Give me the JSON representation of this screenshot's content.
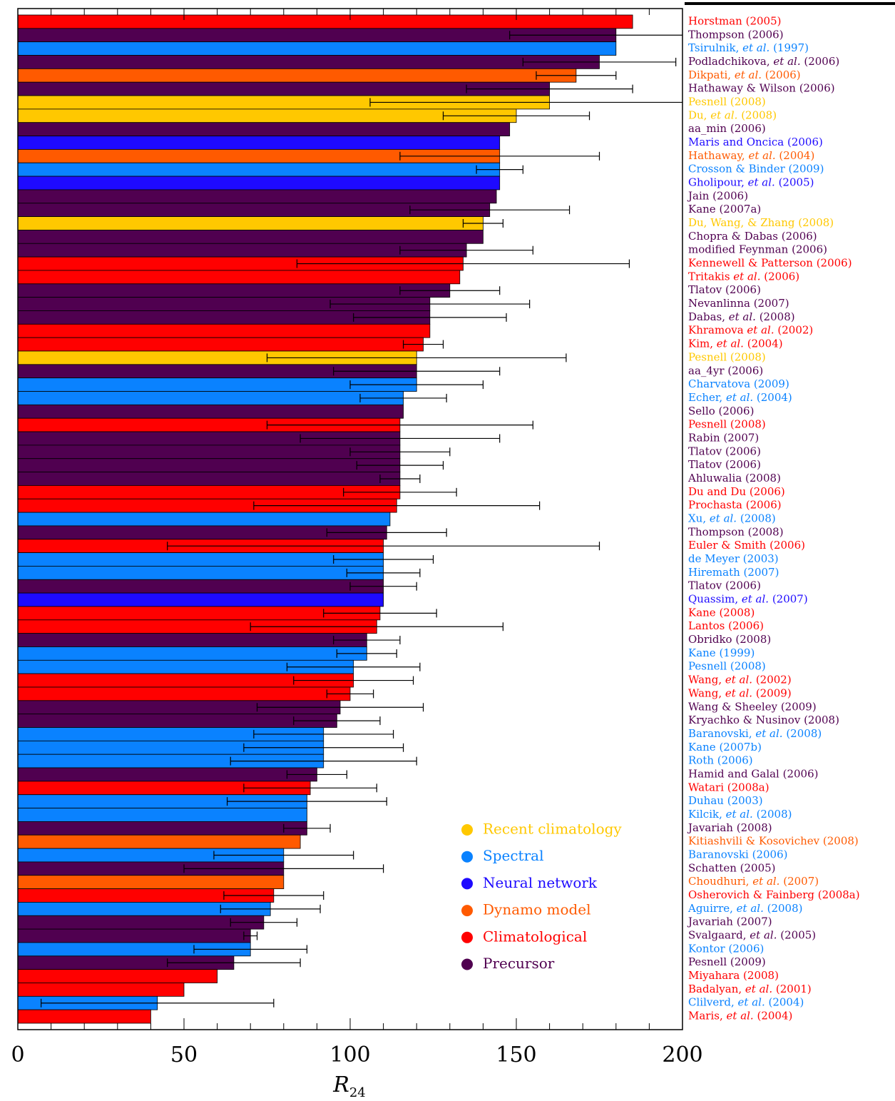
{
  "chart_data": {
    "type": "barh",
    "xlim": [
      0,
      200
    ],
    "xticks": [
      0,
      50,
      100,
      150,
      200
    ],
    "xminorticks": [
      10,
      20,
      30,
      40,
      60,
      70,
      80,
      90,
      110,
      120,
      130,
      140,
      160,
      170,
      180,
      190
    ],
    "xlabel": "R",
    "xlabel_subscript": "24",
    "categories": [
      "Horstman (2005)",
      "Thompson (2006)",
      "Tsirulnik, et al. (1997)",
      "Podladchikova, et al. (2006)",
      "Dikpati, et al. (2006)",
      "Hathaway & Wilson (2006)",
      "Pesnell (2008)",
      "Du, et al. (2008)",
      "aa_min (2006)",
      "Maris and Oncica (2006)",
      "Hathaway, et al. (2004)",
      "Crosson & Binder (2009)",
      "Gholipour, et al. (2005)",
      "Jain (2006)",
      "Kane (2007a)",
      "Du, Wang, & Zhang (2008)",
      "Chopra & Dabas (2006)",
      "modified Feynman (2006)",
      "Kennewell & Patterson (2006)",
      "Tritakis et al. (2006)",
      "Tlatov (2006)",
      "Nevanlinna (2007)",
      "Dabas, et al. (2008)",
      "Khramova et al. (2002)",
      "Kim, et al. (2004)",
      "Pesnell (2008)",
      "aa_4yr (2006)",
      "Charvatova (2009)",
      "Echer, et al. (2004)",
      "Sello (2006)",
      "Pesnell (2008)",
      "Rabin (2007)",
      "Tlatov (2006)",
      "Tlatov (2006)",
      "Ahluwalia (2008)",
      "Du and Du (2006)",
      "Prochasta (2006)",
      "Xu, et al. (2008)",
      "Thompson (2008)",
      "Euler & Smith (2006)",
      "de Meyer (2003)",
      "Hiremath (2007)",
      "Tlatov (2006)",
      "Quassim, et al. (2007)",
      "Kane (2008)",
      "Lantos (2006)",
      "Obridko (2008)",
      "Kane (1999)",
      "Pesnell (2008)",
      "Wang, et al. (2002)",
      "Wang, et al. (2009)",
      "Wang & Sheeley (2009)",
      "Kryachko & Nusinov (2008)",
      "Baranovski, et al. (2008)",
      "Kane (2007b)",
      "Roth (2006)",
      "Hamid and Galal (2006)",
      "Watari (2008a)",
      "Duhau (2003)",
      "Kilcik, et al. (2008)",
      "Javariah (2008)",
      "Kitiashvili & Kosovichev (2008)",
      "Baranovski (2006)",
      "Schatten (2005)",
      "Choudhuri, et al. (2007)",
      "Osherovich & Fainberg (2008a)",
      "Aguirre, et al. (2008)",
      "Javariah (2007)",
      "Svalgaard, et al. (2005)",
      "Kontor (2006)",
      "Pesnell (2009)",
      "Miyahara (2008)",
      "Badalyan, et al. (2001)",
      "Clilverd, et al. (2004)",
      "Maris, et al. (2004)"
    ],
    "values": [
      185,
      180,
      180,
      175,
      168,
      160,
      160,
      150,
      148,
      145,
      145,
      145,
      145,
      144,
      142,
      140,
      140,
      135,
      134,
      133,
      130,
      124,
      124,
      124,
      122,
      120,
      120,
      120,
      116,
      116,
      115,
      115,
      115,
      115,
      115,
      115,
      114,
      112,
      111,
      110,
      110,
      110,
      110,
      110,
      109,
      108,
      105,
      105,
      101,
      101,
      100,
      97,
      96,
      92,
      92,
      92,
      90,
      88,
      87,
      87,
      87,
      85,
      80,
      80,
      80,
      77,
      76,
      74,
      70,
      70,
      65,
      60,
      50,
      42,
      40
    ],
    "errors": [
      null,
      32,
      null,
      23,
      12,
      25,
      54,
      22,
      null,
      null,
      30,
      7,
      null,
      null,
      24,
      6,
      null,
      20,
      50,
      null,
      15,
      30,
      23,
      null,
      6,
      45,
      25,
      20,
      13,
      null,
      40,
      30,
      15,
      13,
      6,
      17,
      43,
      null,
      18,
      65,
      15,
      11,
      10,
      null,
      17,
      38,
      10,
      9,
      20,
      18,
      7,
      25,
      13,
      21,
      24,
      28,
      9,
      20,
      24,
      null,
      7,
      null,
      21,
      30,
      null,
      15,
      15,
      10,
      2,
      17,
      20,
      null,
      null,
      35,
      null
    ],
    "colors": [
      "#ff0000",
      "#500050",
      "#0a82ff",
      "#500050",
      "#ff5a00",
      "#500050",
      "#ffc800",
      "#ffc800",
      "#500050",
      "#1e0aff",
      "#ff5a00",
      "#0a82ff",
      "#1e0aff",
      "#500050",
      "#500050",
      "#ffc800",
      "#500050",
      "#500050",
      "#ff0000",
      "#ff0000",
      "#500050",
      "#500050",
      "#500050",
      "#ff0000",
      "#ff0000",
      "#ffc800",
      "#500050",
      "#0a82ff",
      "#0a82ff",
      "#500050",
      "#ff0000",
      "#500050",
      "#500050",
      "#500050",
      "#500050",
      "#ff0000",
      "#ff0000",
      "#0a82ff",
      "#500050",
      "#ff0000",
      "#0a82ff",
      "#0a82ff",
      "#500050",
      "#1e0aff",
      "#ff0000",
      "#ff0000",
      "#500050",
      "#0a82ff",
      "#0a82ff",
      "#ff0000",
      "#ff0000",
      "#500050",
      "#500050",
      "#0a82ff",
      "#0a82ff",
      "#0a82ff",
      "#500050",
      "#ff0000",
      "#0a82ff",
      "#0a82ff",
      "#500050",
      "#ff5a00",
      "#0a82ff",
      "#500050",
      "#ff5a00",
      "#ff0000",
      "#0a82ff",
      "#500050",
      "#500050",
      "#0a82ff",
      "#500050",
      "#ff0000",
      "#ff0000",
      "#0a82ff",
      "#ff0000"
    ],
    "legend": [
      {
        "name": "Recent climatology",
        "color": "#ffc800"
      },
      {
        "name": "Spectral",
        "color": "#0a82ff"
      },
      {
        "name": "Neural network",
        "color": "#1e0aff"
      },
      {
        "name": "Dynamo model",
        "color": "#ff5a00"
      },
      {
        "name": "Climatological",
        "color": "#ff0000"
      },
      {
        "name": "Precursor",
        "color": "#500050"
      }
    ]
  }
}
